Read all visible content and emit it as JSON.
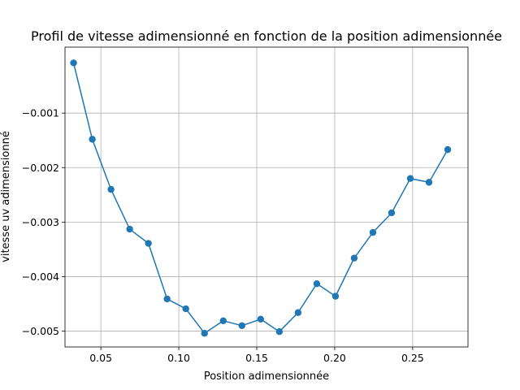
{
  "chart_data": {
    "type": "line",
    "title": "Profil de vitesse adimensionné en fonction de la position adimensionnée",
    "xlabel": "Position adimensionnée",
    "ylabel": "vitesse uv adimensionné",
    "xlim": [
      0.027,
      0.2855
    ],
    "ylim": [
      -0.00529,
      0.00021
    ],
    "grid": true,
    "marker": "circle",
    "colors": {
      "series": "#1f77b4",
      "grid": "#b0b0b0"
    },
    "xticks": [
      {
        "value": 0.05,
        "label": "0.05"
      },
      {
        "value": 0.1,
        "label": "0.10"
      },
      {
        "value": 0.15,
        "label": "0.15"
      },
      {
        "value": 0.2,
        "label": "0.20"
      },
      {
        "value": 0.25,
        "label": "0.25"
      }
    ],
    "yticks": [
      {
        "value": -0.001,
        "label": "−0.001"
      },
      {
        "value": -0.002,
        "label": "−0.002"
      },
      {
        "value": -0.003,
        "label": "−0.003"
      },
      {
        "value": -0.004,
        "label": "−0.004"
      },
      {
        "value": -0.005,
        "label": "−0.005"
      }
    ],
    "series": [
      {
        "x": [
          0.0325,
          0.0445,
          0.0565,
          0.0685,
          0.0805,
          0.0925,
          0.1045,
          0.1165,
          0.1285,
          0.1405,
          0.1525,
          0.1645,
          0.1765,
          0.1885,
          0.2005,
          0.2125,
          0.2245,
          0.2365,
          0.2485,
          0.2605,
          0.2725
        ],
        "values": [
          -8e-05,
          -0.00148,
          -0.0024,
          -0.00313,
          -0.00339,
          -0.00441,
          -0.00459,
          -0.00504,
          -0.00481,
          -0.0049,
          -0.00478,
          -0.00501,
          -0.00466,
          -0.00413,
          -0.00436,
          -0.00366,
          -0.00319,
          -0.00283,
          -0.0022,
          -0.00227,
          -0.00167
        ]
      }
    ]
  }
}
